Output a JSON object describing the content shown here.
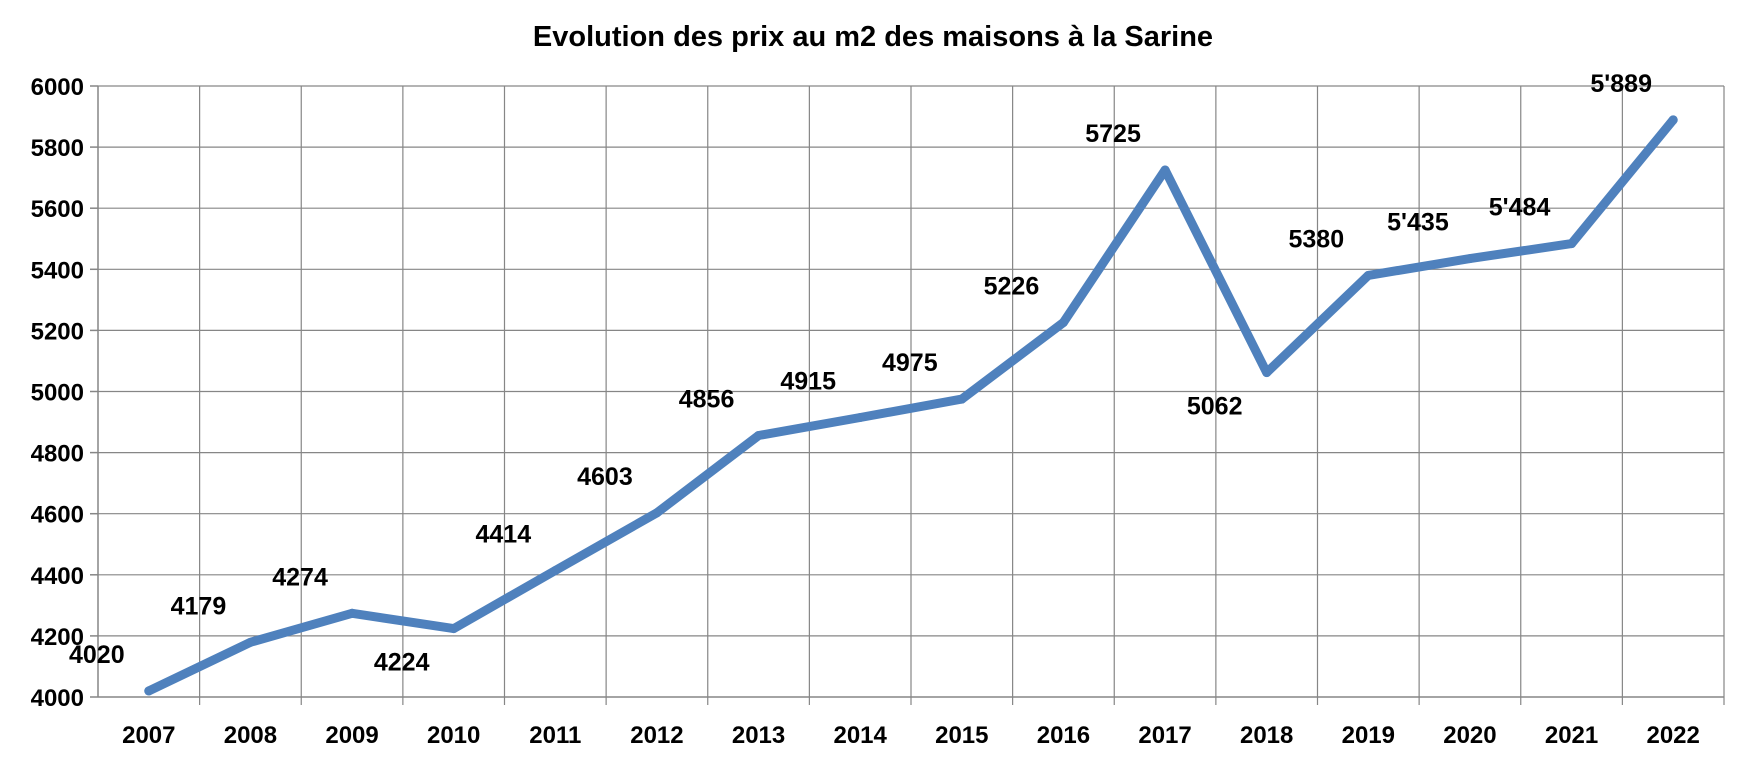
{
  "chart_data": {
    "type": "line",
    "title": "Evolution des prix au m2 des maisons à la Sarine",
    "xlabel": "",
    "ylabel": "",
    "categories": [
      "2007",
      "2008",
      "2009",
      "2010",
      "2011",
      "2012",
      "2013",
      "2014",
      "2015",
      "2016",
      "2017",
      "2018",
      "2019",
      "2020",
      "2021",
      "2022"
    ],
    "series": [
      {
        "color": "#4F81BD",
        "values": [
          4020,
          4179,
          4274,
          4224,
          4414,
          4603,
          4856,
          4915,
          4975,
          5226,
          5725,
          5062,
          5380,
          5435,
          5484,
          5889
        ],
        "labels": [
          "4020",
          "4179",
          "4274",
          "4224",
          "4414",
          "4603",
          "4856",
          "4915",
          "4975",
          "5226",
          "5725",
          "5062",
          "5380",
          "5'435",
          "5'484",
          "5'889"
        ],
        "label_positions": [
          "above",
          "above",
          "above",
          "below",
          "above",
          "above",
          "above",
          "above",
          "above",
          "above",
          "above",
          "below",
          "above",
          "above",
          "above",
          "above"
        ]
      }
    ],
    "ylim": [
      4000,
      6000
    ],
    "yticks": [
      4000,
      4200,
      4400,
      4600,
      4800,
      5000,
      5200,
      5400,
      5600,
      5800,
      6000
    ],
    "grid": true,
    "legend": "none"
  }
}
